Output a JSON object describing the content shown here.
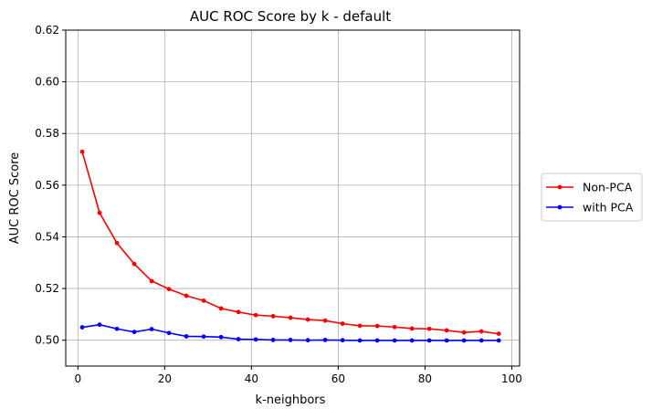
{
  "chart_data": {
    "type": "line",
    "title": "AUC ROC Score by k - default",
    "xlabel": "k-neighbors",
    "ylabel": "AUC ROC Score",
    "xlim": [
      -2.8,
      101.8
    ],
    "ylim": [
      0.49,
      0.62
    ],
    "xticks": [
      0,
      20,
      40,
      60,
      80,
      100
    ],
    "yticks": [
      0.5,
      0.52,
      0.54,
      0.56,
      0.58,
      0.6,
      0.62
    ],
    "xtick_labels": [
      "0",
      "20",
      "40",
      "60",
      "80",
      "100"
    ],
    "ytick_labels": [
      "0.50",
      "0.52",
      "0.54",
      "0.56",
      "0.58",
      "0.60",
      "0.62"
    ],
    "grid": true,
    "legend_position": "right, outside plot",
    "x": [
      1,
      5,
      9,
      13,
      17,
      21,
      25,
      29,
      33,
      37,
      41,
      45,
      49,
      53,
      57,
      61,
      65,
      69,
      73,
      77,
      81,
      85,
      89,
      93,
      97
    ],
    "series": [
      {
        "name": "Non-PCA",
        "color": "#ff0000",
        "marker": "circle",
        "values": [
          0.5729,
          0.5493,
          0.5376,
          0.5295,
          0.5229,
          0.5198,
          0.5172,
          0.5153,
          0.5123,
          0.5109,
          0.5097,
          0.5093,
          0.5087,
          0.508,
          0.5076,
          0.5064,
          0.5056,
          0.5055,
          0.5051,
          0.5045,
          0.5044,
          0.5038,
          0.503,
          0.5034,
          0.5025
        ]
      },
      {
        "name": "with PCA",
        "color": "#0000ff",
        "marker": "circle",
        "values": [
          0.505,
          0.506,
          0.5044,
          0.5032,
          0.5043,
          0.5028,
          0.5015,
          0.5014,
          0.5012,
          0.5004,
          0.5003,
          0.5001,
          0.5001,
          0.5,
          0.5001,
          0.5,
          0.4999,
          0.4999,
          0.4999,
          0.4999,
          0.4999,
          0.4999,
          0.4999,
          0.4999,
          0.4999
        ]
      }
    ]
  }
}
